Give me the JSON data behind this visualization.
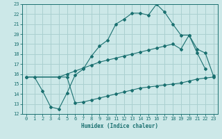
{
  "xlabel": "Humidex (Indice chaleur)",
  "bg_color": "#cce8e8",
  "grid_color": "#aad0d0",
  "line_color": "#1a7070",
  "xlim": [
    -0.5,
    23.5
  ],
  "ylim": [
    12,
    23
  ],
  "xticks": [
    0,
    1,
    2,
    3,
    4,
    5,
    6,
    7,
    8,
    9,
    10,
    11,
    12,
    13,
    14,
    15,
    16,
    17,
    18,
    19,
    20,
    21,
    22,
    23
  ],
  "yticks": [
    12,
    13,
    14,
    15,
    16,
    17,
    18,
    19,
    20,
    21,
    22,
    23
  ],
  "line1_x": [
    1,
    2,
    3,
    4,
    5,
    6,
    7,
    8,
    9,
    10,
    11,
    12,
    13,
    14,
    15,
    16,
    17,
    18,
    19,
    20,
    21,
    22
  ],
  "line1_y": [
    15.7,
    14.3,
    12.7,
    12.5,
    14.1,
    15.9,
    16.5,
    17.8,
    18.8,
    19.4,
    21.0,
    21.5,
    22.1,
    22.1,
    21.9,
    23.0,
    22.2,
    21.0,
    19.9,
    19.9,
    18.1,
    16.5
  ],
  "line2_x": [
    0,
    4,
    5,
    6,
    7,
    8,
    9,
    10,
    11,
    12,
    13,
    14,
    15,
    16,
    17,
    18,
    19,
    20,
    21,
    22,
    23
  ],
  "line2_y": [
    15.7,
    15.7,
    16.0,
    16.3,
    16.6,
    16.9,
    17.2,
    17.4,
    17.6,
    17.8,
    18.0,
    18.2,
    18.4,
    18.6,
    18.8,
    19.0,
    18.5,
    19.9,
    18.5,
    18.1,
    15.8
  ],
  "line3_x": [
    0,
    4,
    5,
    6,
    7,
    8,
    9,
    10,
    11,
    12,
    13,
    14,
    15,
    16,
    17,
    18,
    19,
    20,
    21,
    22,
    23
  ],
  "line3_y": [
    15.7,
    15.7,
    15.7,
    13.1,
    13.2,
    13.4,
    13.6,
    13.8,
    14.0,
    14.2,
    14.4,
    14.6,
    14.7,
    14.8,
    14.9,
    15.0,
    15.1,
    15.3,
    15.5,
    15.6,
    15.7
  ]
}
